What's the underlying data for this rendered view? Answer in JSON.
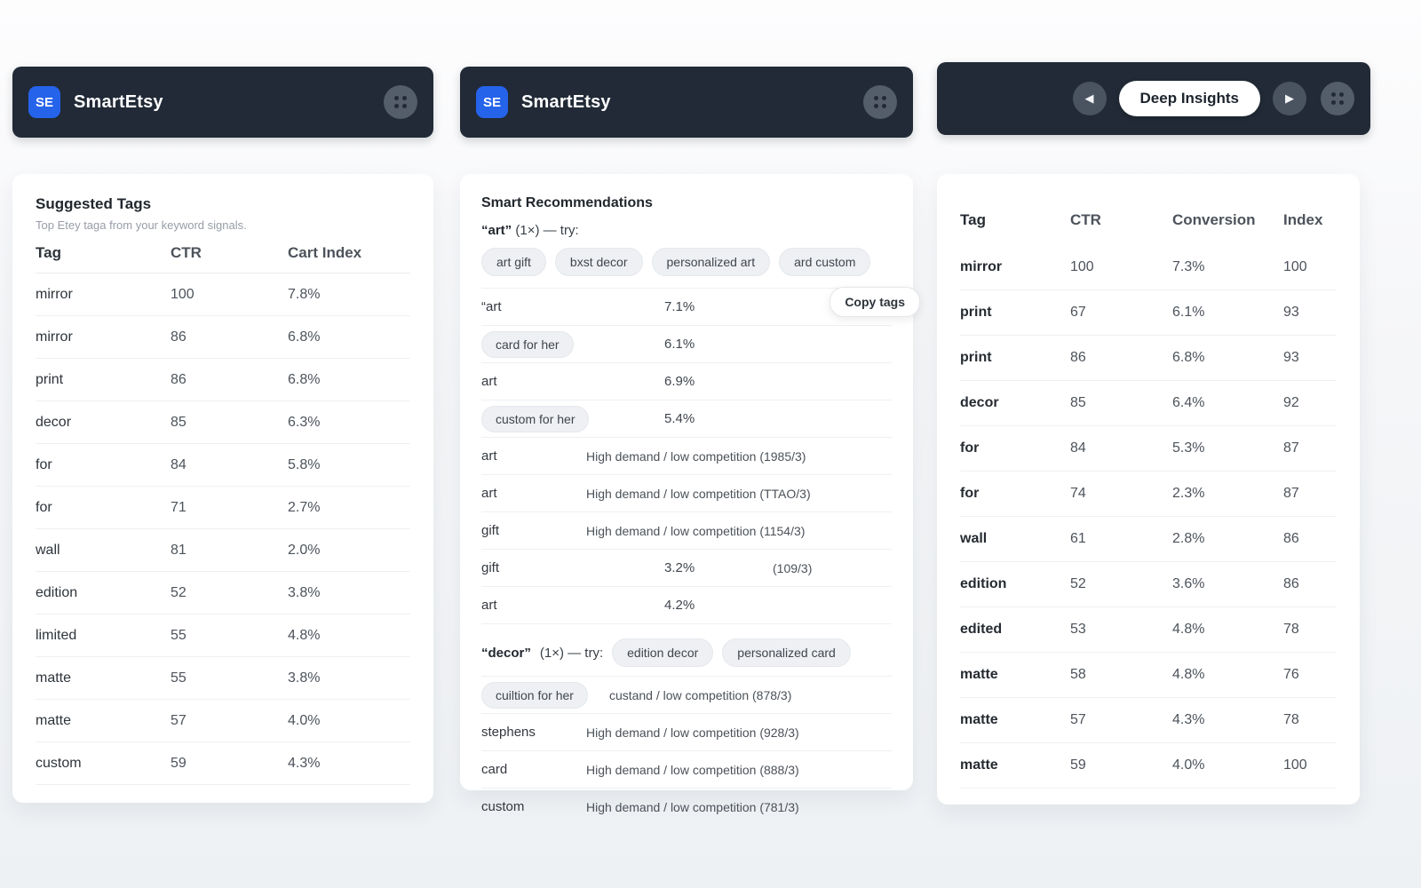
{
  "brand": {
    "logo": "SE",
    "name": "SmartEtsy"
  },
  "colors": {
    "header_bg": "#212a36",
    "logo_blue": "#2563eb",
    "chip_bg": "#eef0f3",
    "card_bg": "#ffffff"
  },
  "left_panel": {
    "title": "Suggested Tags",
    "subtitle": "Top Etey taga from your keyword signals.",
    "columns": [
      "Tag",
      "CTR",
      "Cart Index"
    ],
    "rows": [
      {
        "tag": "mirror",
        "ctr": "100",
        "cart_index": "7.8%"
      },
      {
        "tag": "mirror",
        "ctr": "86",
        "cart_index": "6.8%"
      },
      {
        "tag": "print",
        "ctr": "86",
        "cart_index": "6.8%"
      },
      {
        "tag": "decor",
        "ctr": "85",
        "cart_index": "6.3%"
      },
      {
        "tag": "for",
        "ctr": "84",
        "cart_index": "5.8%"
      },
      {
        "tag": "for",
        "ctr": "71",
        "cart_index": "2.7%"
      },
      {
        "tag": "wall",
        "ctr": "81",
        "cart_index": "2.0%"
      },
      {
        "tag": "edition",
        "ctr": "52",
        "cart_index": "3.8%"
      },
      {
        "tag": "limited",
        "ctr": "55",
        "cart_index": "4.8%"
      },
      {
        "tag": "matte",
        "ctr": "55",
        "cart_index": "3.8%"
      },
      {
        "tag": "matte",
        "ctr": "57",
        "cart_index": "4.0%"
      },
      {
        "tag": "custom",
        "ctr": "59",
        "cart_index": "4.3%"
      }
    ]
  },
  "middle_panel": {
    "title": "Smart Recommendations",
    "copy_button": "Copy tags",
    "section_art": {
      "keyword": "“art”",
      "meta": "(1×) — try:",
      "chips": [
        "art gift",
        "bxst decor",
        "personalized art",
        "ard custom"
      ]
    },
    "rows_art": [
      {
        "label": "“art",
        "value": "7.1%"
      },
      {
        "label": "card for her",
        "chip": true,
        "value": "6.1%"
      },
      {
        "label": "art",
        "value": "6.9%"
      },
      {
        "label": "custom for her",
        "chip": true,
        "value": "5.4%"
      },
      {
        "label": "art",
        "note": "High demand / low competition (1985/3)"
      },
      {
        "label": "art",
        "note": "High demand / low competition (TTAO/3)"
      },
      {
        "label": "gift",
        "note": "High demand / low competition (1154/3)"
      },
      {
        "label": "gift",
        "value": "3.2%",
        "extra": "(109/3)"
      },
      {
        "label": "art",
        "value": "4.2%"
      }
    ],
    "section_decor": {
      "keyword": "“decor”",
      "meta": "(1×) — try:",
      "chips": [
        "edition decor",
        "personalized card"
      ]
    },
    "rows_decor": [
      {
        "label": "cuiltion for her",
        "chip": true,
        "note_flow": "custand / low competition (878/3)"
      },
      {
        "label": "stephens",
        "note": "High demand / low competition (928/3)"
      },
      {
        "label": "card",
        "note": "High demand / low competition (888/3)"
      },
      {
        "label": "custom",
        "note": "High demand / low competition (781/3)"
      }
    ]
  },
  "right_panel": {
    "nav": {
      "prev": "◀",
      "next": "▶",
      "pill": "Deep Insights"
    },
    "columns": [
      "Tag",
      "CTR",
      "Conversion",
      "Index"
    ],
    "rows": [
      {
        "tag": "mirror",
        "ctr": "100",
        "conversion": "7.3%",
        "index": "100"
      },
      {
        "tag": "print",
        "ctr": "67",
        "conversion": "6.1%",
        "index": "93"
      },
      {
        "tag": "print",
        "ctr": "86",
        "conversion": "6.8%",
        "index": "93"
      },
      {
        "tag": "decor",
        "ctr": "85",
        "conversion": "6.4%",
        "index": "92"
      },
      {
        "tag": "for",
        "ctr": "84",
        "conversion": "5.3%",
        "index": "87"
      },
      {
        "tag": "for",
        "ctr": "74",
        "conversion": "2.3%",
        "index": "87"
      },
      {
        "tag": "wall",
        "ctr": "61",
        "conversion": "2.8%",
        "index": "86"
      },
      {
        "tag": "edition",
        "ctr": "52",
        "conversion": "3.6%",
        "index": "86"
      },
      {
        "tag": "edited",
        "ctr": "53",
        "conversion": "4.8%",
        "index": "78"
      },
      {
        "tag": "matte",
        "ctr": "58",
        "conversion": "4.8%",
        "index": "76"
      },
      {
        "tag": "matte",
        "ctr": "57",
        "conversion": "4.3%",
        "index": "78"
      },
      {
        "tag": "matte",
        "ctr": "59",
        "conversion": "4.0%",
        "index": "100"
      }
    ]
  }
}
